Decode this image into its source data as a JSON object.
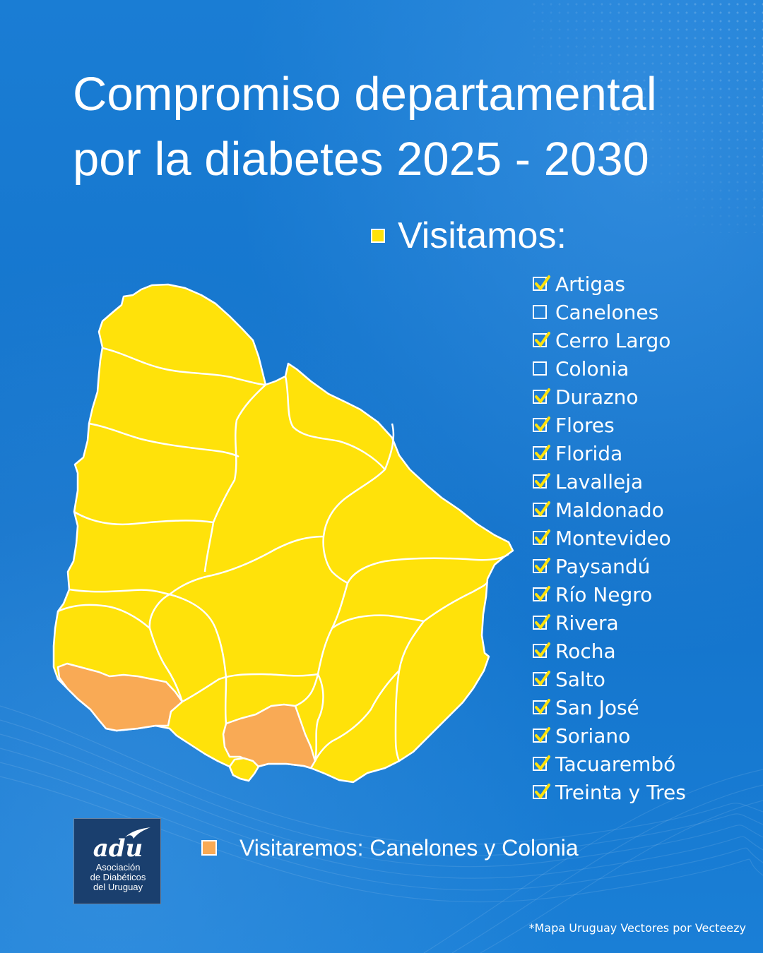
{
  "title": {
    "line1": "Compromiso departamental",
    "line2": "por la diabetes 2025 - 2030"
  },
  "legend": {
    "visited_label": "Visitamos:",
    "visited_color": "#ffe20a",
    "pending_label": "Visitaremos: Canelones y Colonia",
    "pending_color": "#f9aa55"
  },
  "departments": [
    {
      "name": "Artigas",
      "checked": true
    },
    {
      "name": "Canelones",
      "checked": false
    },
    {
      "name": "Cerro Largo",
      "checked": true
    },
    {
      "name": "Colonia",
      "checked": false
    },
    {
      "name": "Durazno",
      "checked": true
    },
    {
      "name": "Flores",
      "checked": true
    },
    {
      "name": "Florida",
      "checked": true
    },
    {
      "name": "Lavalleja",
      "checked": true
    },
    {
      "name": "Maldonado",
      "checked": true
    },
    {
      "name": "Montevideo",
      "checked": true
    },
    {
      "name": "Paysandú",
      "checked": true
    },
    {
      "name": "Río Negro",
      "checked": true
    },
    {
      "name": "Rivera",
      "checked": true
    },
    {
      "name": "Rocha",
      "checked": true
    },
    {
      "name": "Salto",
      "checked": true
    },
    {
      "name": "San José",
      "checked": true
    },
    {
      "name": "Soriano",
      "checked": true
    },
    {
      "name": "Tacuarembó",
      "checked": true
    },
    {
      "name": "Treinta y Tres",
      "checked": true
    }
  ],
  "logo": {
    "mark": "adu",
    "line1": "Asociación",
    "line2": "de Diabéticos",
    "line3": "del Uruguay"
  },
  "credit": "*Mapa Uruguay Vectores por Vecteezy",
  "colors": {
    "background": "#1676cc",
    "checkmark": "#ffe20a",
    "border": "#ffffff"
  }
}
